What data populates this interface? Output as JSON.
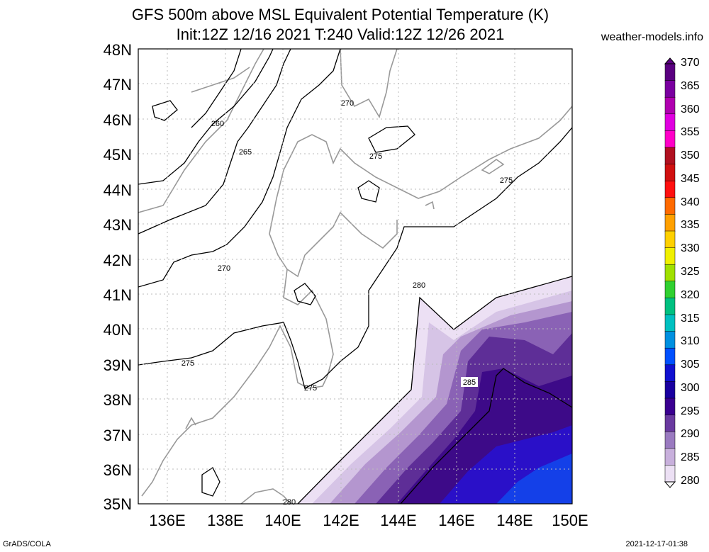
{
  "title": {
    "line1": "GFS 500m above MSL Equivalent Potential Temperature (K)",
    "line2": "Init:12Z 12/16 2021 T:240 Valid:12Z 12/26 2021"
  },
  "site": "weather-models.info",
  "footer": {
    "left": "GrADS/COLA",
    "right": "2021-12-17-01:38"
  },
  "map": {
    "lat_labels": [
      "48N",
      "47N",
      "46N",
      "45N",
      "44N",
      "43N",
      "42N",
      "41N",
      "40N",
      "39N",
      "38N",
      "37N",
      "36N",
      "35N"
    ],
    "lon_labels": [
      "136E",
      "138E",
      "140E",
      "142E",
      "144E",
      "146E",
      "148E",
      "150E"
    ],
    "contour_labels": [
      {
        "text": "260"
      },
      {
        "text": "265"
      },
      {
        "text": "270"
      },
      {
        "text": "270"
      },
      {
        "text": "275"
      },
      {
        "text": "275"
      },
      {
        "text": "275"
      },
      {
        "text": "275"
      },
      {
        "text": "280"
      },
      {
        "text": "280"
      },
      {
        "text": "285"
      }
    ]
  },
  "colorbar": {
    "labels": [
      "370",
      "365",
      "360",
      "355",
      "350",
      "345",
      "340",
      "335",
      "330",
      "325",
      "320",
      "315",
      "310",
      "305",
      "300",
      "295",
      "290",
      "285",
      "280"
    ],
    "colors": [
      "#5a0080",
      "#7a00a0",
      "#b000b0",
      "#e000e0",
      "#ff00c8",
      "#b01020",
      "#d01010",
      "#ff1010",
      "#ff6a00",
      "#ffa000",
      "#ffd000",
      "#f0f000",
      "#a0e000",
      "#30d030",
      "#00c080",
      "#00c0c0",
      "#0090e0",
      "#0050ff",
      "#1010d0",
      "#1a00a0",
      "#3a0090",
      "#6a3aa0",
      "#9a7ac0",
      "#c8b0dc",
      "#ece0f4"
    ]
  }
}
